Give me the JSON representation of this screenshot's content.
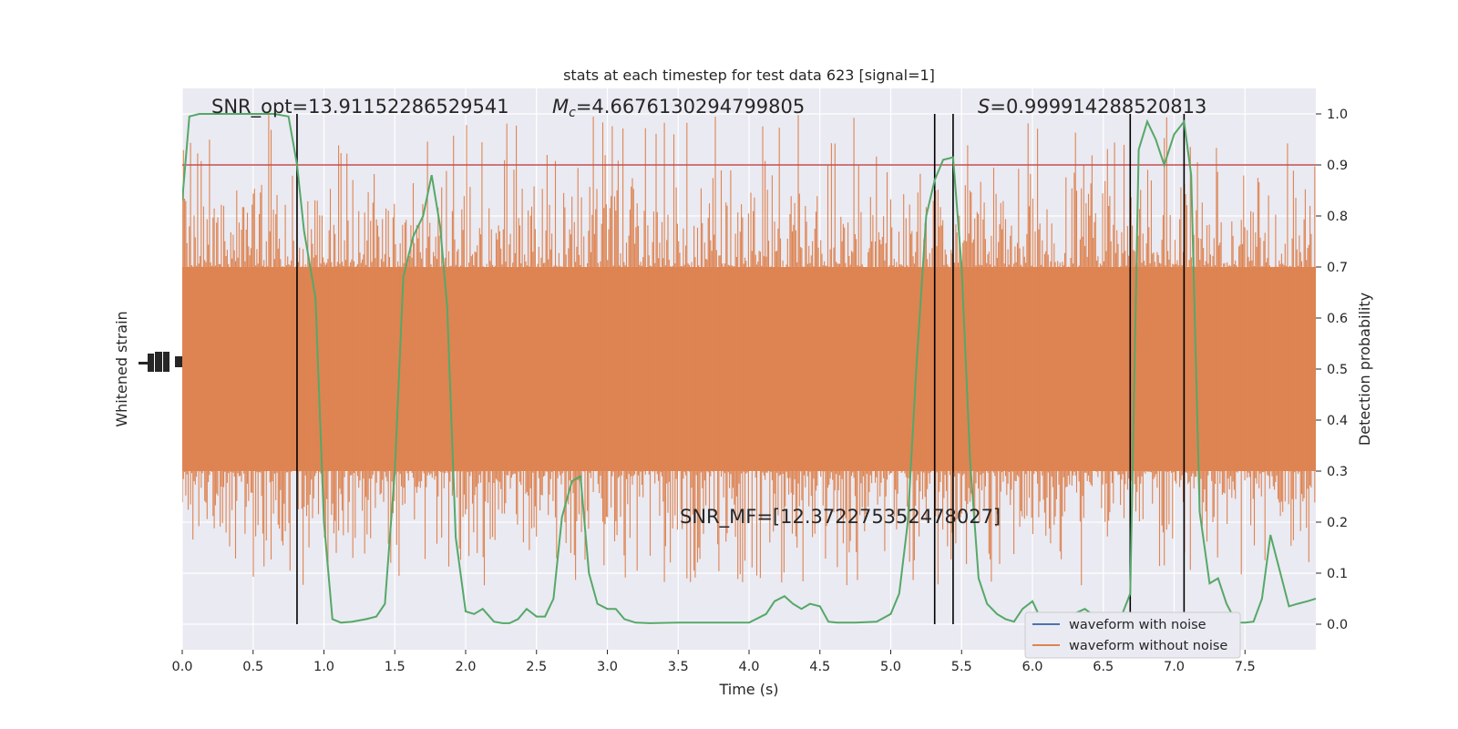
{
  "chart_data": {
    "type": "line",
    "title": "stats at each timestep for test data 623 [signal=1]",
    "xlabel": "Time (s)",
    "ylabel_left": "Whitened strain",
    "ylabel_right": "Detection probability",
    "xlim": [
      0,
      8
    ],
    "xticks": [
      0.0,
      0.5,
      1.0,
      1.5,
      2.0,
      2.5,
      3.0,
      3.5,
      4.0,
      4.5,
      5.0,
      5.5,
      6.0,
      6.5,
      7.0,
      7.5
    ],
    "xtick_labels": [
      "0.0",
      "0.5",
      "1.0",
      "1.5",
      "2.0",
      "2.5",
      "3.0",
      "3.5",
      "4.0",
      "4.5",
      "5.0",
      "5.5",
      "6.0",
      "6.5",
      "7.0",
      "7.5"
    ],
    "ylim_right": [
      -0.05,
      1.05
    ],
    "yticks_right": [
      0.0,
      0.1,
      0.2,
      0.3,
      0.4,
      0.5,
      0.6,
      0.7,
      0.8,
      0.9,
      1.0
    ],
    "ytick_labels_right": [
      "0.0",
      "0.1",
      "0.2",
      "0.3",
      "0.4",
      "0.5",
      "0.6",
      "0.7",
      "0.8",
      "0.9",
      "1.0"
    ],
    "grid": true,
    "legend": {
      "position": "lower-right",
      "entries": [
        {
          "label": "waveform with noise",
          "color": "#4c72b0"
        },
        {
          "label": "waveform without noise",
          "color": "#dd8452"
        }
      ]
    },
    "annotations": {
      "snr_opt": "SNR_opt=13.91152286529541",
      "mc_symbol": "M",
      "mc_sub": "c",
      "mc_value": "=4.6676130294799805",
      "s_symbol": "S",
      "s_value": "=0.999914288520813",
      "snr_mf": "SNR_MF=[12.372275352478027]"
    },
    "threshold": {
      "value": 0.9,
      "color": "#c44e52"
    },
    "vertical_markers": [
      0.81,
      5.31,
      5.44,
      6.69,
      7.07
    ],
    "strain_band": {
      "color": "#dd8452",
      "base_range": [
        0.3,
        0.7
      ],
      "spike_range": [
        0.05,
        1.0
      ]
    },
    "series": [
      {
        "name": "Detection probability",
        "color": "#55a868",
        "x": [
          0.0,
          0.05,
          0.12,
          0.25,
          0.4,
          0.55,
          0.65,
          0.75,
          0.81,
          0.86,
          0.94,
          1.0,
          1.06,
          1.12,
          1.2,
          1.3,
          1.37,
          1.43,
          1.5,
          1.56,
          1.63,
          1.7,
          1.76,
          1.82,
          1.87,
          1.93,
          2.0,
          2.06,
          2.12,
          2.2,
          2.26,
          2.31,
          2.37,
          2.43,
          2.5,
          2.56,
          2.62,
          2.68,
          2.75,
          2.81,
          2.87,
          2.93,
          3.0,
          3.06,
          3.12,
          3.2,
          3.3,
          3.5,
          3.75,
          4.0,
          4.12,
          4.18,
          4.25,
          4.31,
          4.37,
          4.43,
          4.5,
          4.56,
          4.62,
          4.75,
          4.9,
          5.0,
          5.06,
          5.12,
          5.18,
          5.25,
          5.31,
          5.37,
          5.44,
          5.5,
          5.56,
          5.62,
          5.68,
          5.75,
          5.81,
          5.87,
          5.93,
          6.0,
          6.06,
          6.12,
          6.25,
          6.37,
          6.5,
          6.62,
          6.69,
          6.75,
          6.81,
          6.87,
          6.93,
          7.0,
          7.07,
          7.12,
          7.18,
          7.25,
          7.31,
          7.37,
          7.44,
          7.5,
          7.56,
          7.62,
          7.68,
          7.75,
          7.81,
          7.87,
          7.94,
          8.0
        ],
        "y": [
          0.83,
          0.995,
          1.0,
          1.0,
          1.0,
          1.0,
          1.0,
          0.995,
          0.9,
          0.77,
          0.64,
          0.2,
          0.01,
          0.003,
          0.005,
          0.01,
          0.015,
          0.04,
          0.3,
          0.68,
          0.76,
          0.8,
          0.88,
          0.78,
          0.62,
          0.17,
          0.025,
          0.02,
          0.03,
          0.005,
          0.002,
          0.002,
          0.01,
          0.03,
          0.015,
          0.015,
          0.05,
          0.21,
          0.28,
          0.29,
          0.1,
          0.04,
          0.03,
          0.03,
          0.01,
          0.003,
          0.002,
          0.003,
          0.003,
          0.003,
          0.02,
          0.045,
          0.055,
          0.04,
          0.03,
          0.04,
          0.035,
          0.005,
          0.003,
          0.003,
          0.005,
          0.02,
          0.06,
          0.2,
          0.5,
          0.8,
          0.87,
          0.91,
          0.915,
          0.7,
          0.32,
          0.09,
          0.04,
          0.02,
          0.01,
          0.005,
          0.03,
          0.045,
          0.01,
          0.005,
          0.015,
          0.03,
          0.003,
          0.01,
          0.06,
          0.93,
          0.985,
          0.95,
          0.9,
          0.96,
          0.985,
          0.88,
          0.22,
          0.08,
          0.09,
          0.04,
          0.003,
          0.003,
          0.005,
          0.05,
          0.175,
          0.1,
          0.035,
          0.04,
          0.045,
          0.05
        ]
      }
    ]
  }
}
